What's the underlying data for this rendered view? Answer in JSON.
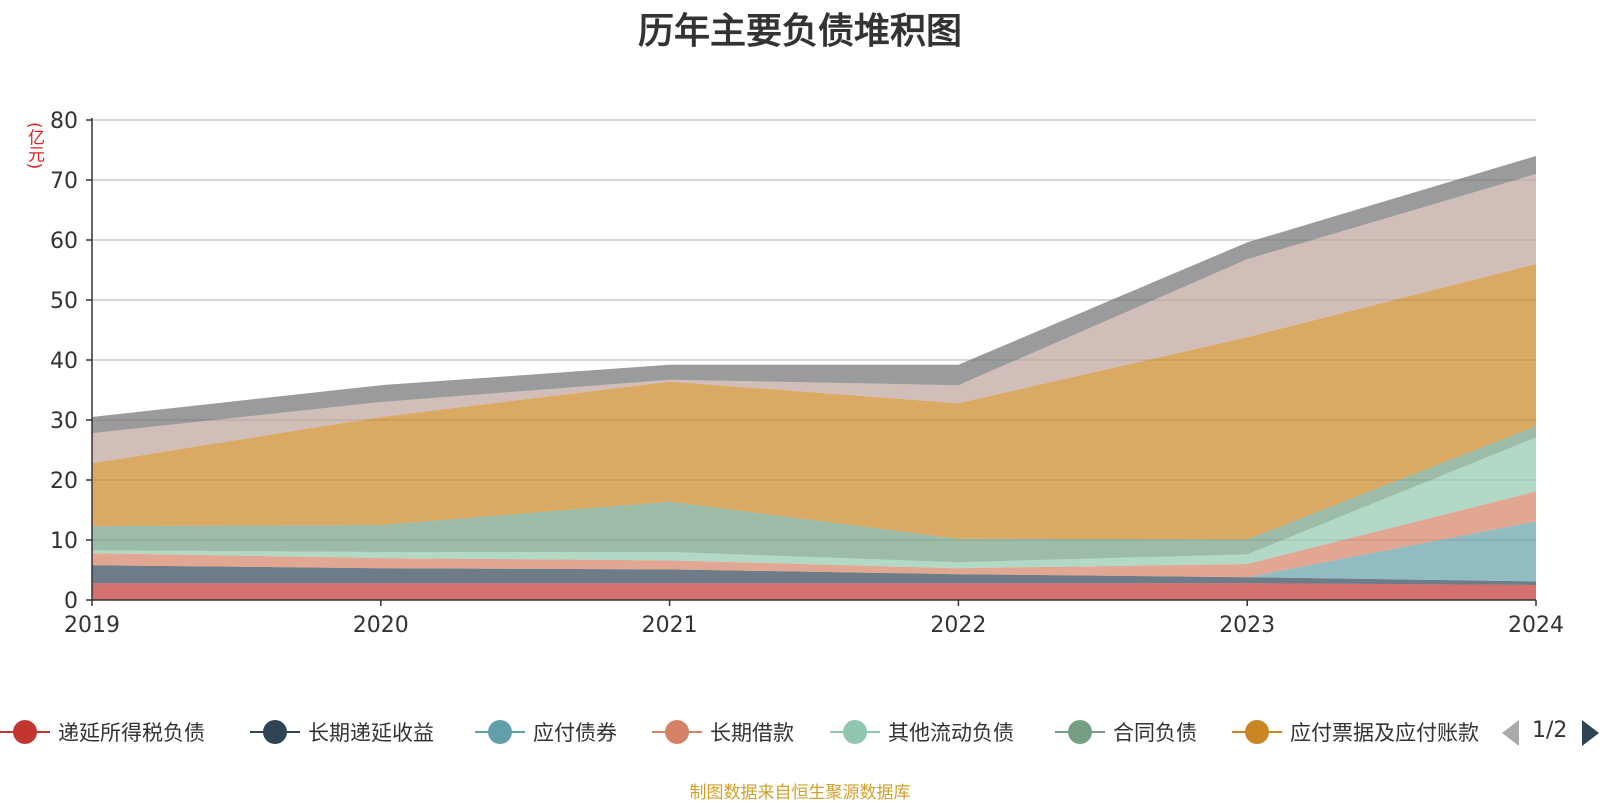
{
  "chart_data": {
    "type": "area",
    "stacked": true,
    "title": "历年主要负债堆积图",
    "unit_label": "(亿元)",
    "categories": [
      "2019",
      "2020",
      "2021",
      "2022",
      "2023",
      "2024"
    ],
    "ylim": [
      0,
      80
    ],
    "yticks": [
      0,
      10,
      20,
      30,
      40,
      50,
      60,
      70,
      80
    ],
    "grid": true,
    "series": [
      {
        "name": "递延所得税负债",
        "color": "#c23531",
        "values": [
          2.8,
          2.8,
          2.8,
          2.8,
          2.8,
          2.5
        ]
      },
      {
        "name": "长期递延收益",
        "color": "#2f4554",
        "values": [
          3.0,
          2.5,
          2.3,
          1.5,
          1.0,
          0.6
        ]
      },
      {
        "name": "应付债券",
        "color": "#61a0a8",
        "values": [
          0,
          0,
          0,
          0,
          0,
          10.0
        ]
      },
      {
        "name": "长期借款",
        "color": "#d48265",
        "values": [
          2.0,
          1.7,
          1.5,
          1.0,
          2.2,
          5.0
        ]
      },
      {
        "name": "其他流动负债",
        "color": "#91c7ae",
        "values": [
          0.5,
          1.0,
          1.4,
          1.0,
          1.6,
          9.0
        ]
      },
      {
        "name": "合同负债",
        "color": "#749f83",
        "values": [
          4.0,
          4.5,
          8.4,
          3.9,
          2.5,
          1.9
        ]
      },
      {
        "name": "应付票据及应付账款",
        "color": "#ca8622",
        "values": [
          10.5,
          18.0,
          20.0,
          22.6,
          33.7,
          27.0
        ]
      },
      {
        "name": "",
        "color": "#bda29a",
        "values": [
          5.0,
          2.5,
          0.3,
          3.0,
          13.0,
          15.0
        ]
      },
      {
        "name": "",
        "color": "#6e7074",
        "values": [
          2.7,
          2.8,
          2.5,
          3.4,
          2.8,
          3.0
        ]
      }
    ]
  },
  "legend": {
    "page": "1/2",
    "visible_count": 7
  },
  "source_note": "制图数据来自恒生聚源数据库"
}
